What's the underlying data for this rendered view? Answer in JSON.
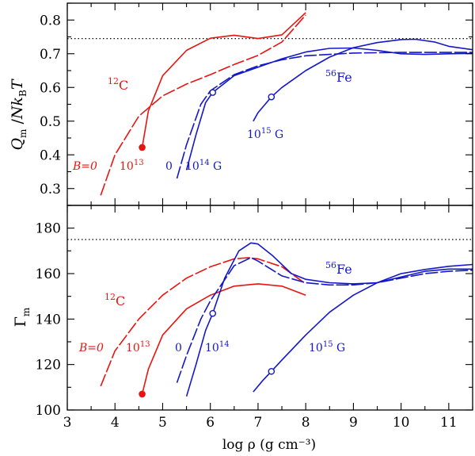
{
  "colors": {
    "red": "#e8140f",
    "blue": "#1418c8",
    "frame": "#000000"
  },
  "x_axis": {
    "label": "log ρ (g cm⁻³)",
    "range": [
      3,
      11.5
    ],
    "ticks": [
      "3",
      "4",
      "5",
      "6",
      "7",
      "8",
      "9",
      "10",
      "11"
    ]
  },
  "chart_data": [
    {
      "type": "line",
      "panel": "top",
      "ylabel": "Q_m / N k_B T",
      "ylim": [
        0.25,
        0.85
      ],
      "y_ticks": [
        "0.3",
        "0.4",
        "0.5",
        "0.6",
        "0.7",
        "0.8"
      ],
      "reference_line": 0.745,
      "series": [
        {
          "name": "12C B=0",
          "color": "red",
          "dash": "longdash",
          "points": [
            [
              3.7,
              0.28
            ],
            [
              4.0,
              0.4
            ],
            [
              4.5,
              0.515
            ],
            [
              5.0,
              0.575
            ],
            [
              5.5,
              0.61
            ],
            [
              6.0,
              0.638
            ],
            [
              6.5,
              0.668
            ],
            [
              7.0,
              0.695
            ],
            [
              7.5,
              0.735
            ],
            [
              8.0,
              0.815
            ]
          ]
        },
        {
          "name": "12C 10^13",
          "color": "red",
          "dash": "solid",
          "marker": {
            "x": 4.57,
            "y": 0.422,
            "style": "filled"
          },
          "points": [
            [
              4.57,
              0.422
            ],
            [
              4.7,
              0.53
            ],
            [
              5.0,
              0.635
            ],
            [
              5.5,
              0.71
            ],
            [
              6.0,
              0.746
            ],
            [
              6.5,
              0.755
            ],
            [
              7.0,
              0.745
            ],
            [
              7.5,
              0.756
            ],
            [
              8.0,
              0.822
            ]
          ]
        },
        {
          "name": "56Fe B=0",
          "color": "blue",
          "dash": "longdash",
          "points": [
            [
              5.3,
              0.33
            ],
            [
              5.5,
              0.43
            ],
            [
              5.8,
              0.55
            ],
            [
              6.0,
              0.59
            ],
            [
              6.5,
              0.638
            ],
            [
              7.0,
              0.664
            ],
            [
              7.5,
              0.682
            ],
            [
              8.0,
              0.694
            ],
            [
              9.0,
              0.702
            ],
            [
              10.0,
              0.704
            ],
            [
              11.5,
              0.704
            ]
          ]
        },
        {
          "name": "56Fe 10^14 G",
          "color": "blue",
          "dash": "solid",
          "marker": {
            "x": 6.05,
            "y": 0.585,
            "style": "open"
          },
          "points": [
            [
              5.5,
              0.355
            ],
            [
              5.7,
              0.46
            ],
            [
              5.9,
              0.555
            ],
            [
              6.05,
              0.585
            ],
            [
              6.5,
              0.635
            ],
            [
              7.0,
              0.66
            ],
            [
              7.5,
              0.685
            ],
            [
              8.0,
              0.705
            ],
            [
              8.5,
              0.716
            ],
            [
              9.0,
              0.717
            ],
            [
              9.5,
              0.71
            ],
            [
              10.0,
              0.7
            ],
            [
              10.5,
              0.698
            ],
            [
              11.0,
              0.7
            ],
            [
              11.5,
              0.701
            ]
          ]
        },
        {
          "name": "56Fe 10^15 G",
          "color": "blue",
          "dash": "solid",
          "marker": {
            "x": 7.28,
            "y": 0.572,
            "style": "open"
          },
          "points": [
            [
              6.9,
              0.5
            ],
            [
              7.0,
              0.525
            ],
            [
              7.28,
              0.572
            ],
            [
              7.5,
              0.6
            ],
            [
              8.0,
              0.65
            ],
            [
              8.5,
              0.69
            ],
            [
              9.0,
              0.718
            ],
            [
              9.5,
              0.733
            ],
            [
              10.0,
              0.742
            ],
            [
              10.3,
              0.743
            ],
            [
              10.7,
              0.735
            ],
            [
              11.0,
              0.722
            ],
            [
              11.5,
              0.712
            ]
          ]
        }
      ],
      "annotations": {
        "carbon": {
          "sup": "12",
          "text": "C"
        },
        "iron": {
          "sup": "56",
          "text": "Fe"
        },
        "b_zero": "B=0",
        "b13": {
          "base": "10",
          "sup": "13"
        },
        "zero": "0",
        "b14": {
          "base": "10",
          "sup": "14",
          "unit": " G"
        },
        "b15": {
          "base": "10",
          "sup": "15",
          "unit": " G"
        }
      }
    },
    {
      "type": "line",
      "panel": "bottom",
      "ylabel": "Γ_m",
      "ylim": [
        100,
        190
      ],
      "y_ticks": [
        "100",
        "120",
        "140",
        "160",
        "180"
      ],
      "reference_line": 175,
      "series": [
        {
          "name": "12C B=0",
          "color": "red",
          "dash": "longdash",
          "points": [
            [
              3.7,
              110.5
            ],
            [
              4.0,
              126
            ],
            [
              4.5,
              140
            ],
            [
              5.0,
              150.5
            ],
            [
              5.5,
              158
            ],
            [
              6.0,
              163
            ],
            [
              6.5,
              166.5
            ],
            [
              6.8,
              167
            ],
            [
              7.0,
              166.5
            ],
            [
              7.5,
              163
            ],
            [
              8.0,
              155.5
            ]
          ]
        },
        {
          "name": "12C 10^13",
          "color": "red",
          "dash": "solid",
          "marker": {
            "x": 4.57,
            "y": 107,
            "style": "filled"
          },
          "points": [
            [
              4.57,
              107
            ],
            [
              4.7,
              118
            ],
            [
              5.0,
              133
            ],
            [
              5.5,
              144.5
            ],
            [
              6.0,
              150.5
            ],
            [
              6.5,
              154.5
            ],
            [
              7.0,
              155.5
            ],
            [
              7.5,
              154.5
            ],
            [
              8.0,
              150.5
            ]
          ]
        },
        {
          "name": "56Fe B=0",
          "color": "blue",
          "dash": "longdash",
          "points": [
            [
              5.3,
              112
            ],
            [
              5.5,
              124
            ],
            [
              5.8,
              140
            ],
            [
              6.0,
              148
            ],
            [
              6.5,
              163.5
            ],
            [
              6.85,
              167
            ],
            [
              7.0,
              165.5
            ],
            [
              7.5,
              159
            ],
            [
              8.0,
              156
            ],
            [
              8.5,
              155
            ],
            [
              9.0,
              155
            ],
            [
              9.5,
              156
            ],
            [
              10.0,
              158
            ],
            [
              10.5,
              160
            ],
            [
              11.0,
              161
            ],
            [
              11.5,
              161.5
            ]
          ]
        },
        {
          "name": "56Fe 10^14",
          "color": "blue",
          "dash": "solid",
          "marker": {
            "x": 6.05,
            "y": 142.5,
            "style": "open"
          },
          "points": [
            [
              5.5,
              106
            ],
            [
              5.7,
              120
            ],
            [
              5.9,
              135
            ],
            [
              6.05,
              142.5
            ],
            [
              6.3,
              158
            ],
            [
              6.6,
              170
            ],
            [
              6.85,
              173.5
            ],
            [
              7.0,
              173
            ],
            [
              7.3,
              168
            ],
            [
              7.7,
              160
            ],
            [
              8.0,
              157.5
            ],
            [
              8.5,
              156
            ],
            [
              9.0,
              155.5
            ],
            [
              9.5,
              156
            ],
            [
              10.0,
              158.5
            ],
            [
              10.5,
              161
            ],
            [
              11.0,
              162
            ],
            [
              11.5,
              162
            ]
          ]
        },
        {
          "name": "56Fe 10^15 G",
          "color": "blue",
          "dash": "solid",
          "marker": {
            "x": 7.28,
            "y": 117,
            "style": "open"
          },
          "points": [
            [
              6.9,
              108
            ],
            [
              7.1,
              113
            ],
            [
              7.28,
              117
            ],
            [
              7.5,
              122
            ],
            [
              8.0,
              133
            ],
            [
              8.5,
              143
            ],
            [
              9.0,
              150.5
            ],
            [
              9.5,
              156
            ],
            [
              10.0,
              160
            ],
            [
              10.5,
              161.8
            ],
            [
              11.0,
              163.2
            ],
            [
              11.5,
              164
            ]
          ]
        }
      ],
      "annotations": {
        "carbon": {
          "sup": "12",
          "text": "C"
        },
        "iron": {
          "sup": "56",
          "text": "Fe"
        },
        "b_zero": "B=0",
        "b13": {
          "base": "10",
          "sup": "13"
        },
        "zero": "0",
        "b14": {
          "base": "10",
          "sup": "14"
        },
        "b15": {
          "base": "10",
          "sup": "15",
          "unit": " G"
        }
      }
    }
  ]
}
